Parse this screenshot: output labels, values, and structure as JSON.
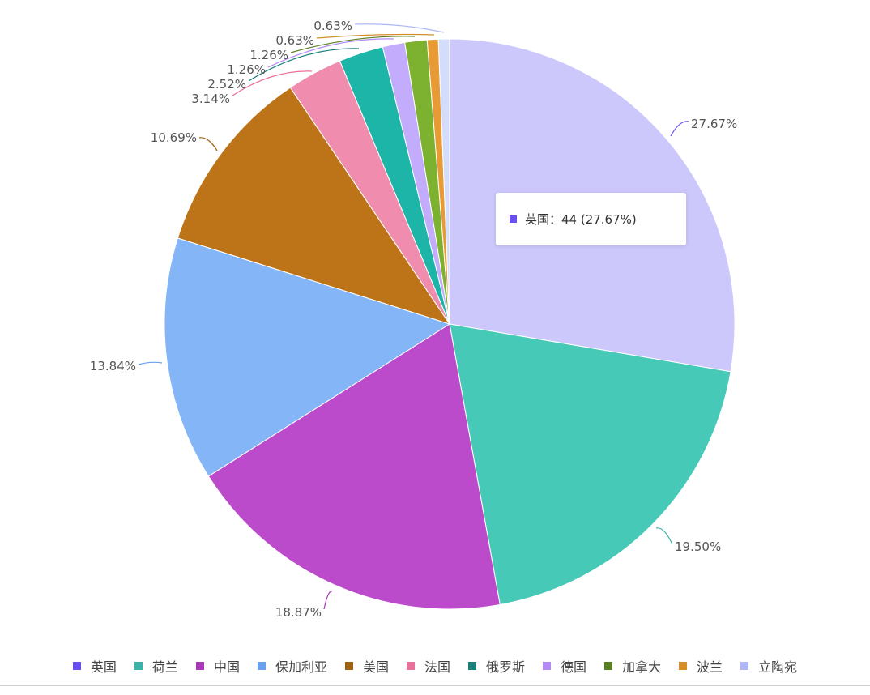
{
  "chart_data": {
    "type": "pie",
    "start": "top",
    "direction": "clockwise",
    "legend_position": "bottom",
    "categories": [
      "英国",
      "荷兰",
      "中国",
      "保加利亚",
      "美国",
      "法国",
      "俄罗斯",
      "德国",
      "加拿大",
      "波兰",
      "立陶宛"
    ],
    "values": [
      44,
      31,
      30,
      22,
      17,
      5,
      4,
      2,
      2,
      1,
      1
    ],
    "labels": [
      "27.67%",
      "19.50%",
      "18.87%",
      "13.84%",
      "10.69%",
      "3.14%",
      "2.52%",
      "1.26%",
      "1.26%",
      "0.63%",
      "0.63%"
    ],
    "slice_colors": [
      "#cdc8fc",
      "#47c9b8",
      "#bc4bcc",
      "#84b6f7",
      "#bd7418",
      "#f08dae",
      "#1cb5a8",
      "#c4acfc",
      "#7cb22f",
      "#e89b35",
      "#d4dcfb"
    ],
    "legend_colors": [
      "#6b4ff0",
      "#3cb3a9",
      "#a93bb8",
      "#6aa0f0",
      "#a0620f",
      "#e8709a",
      "#1a8079",
      "#b18af7",
      "#5a8021",
      "#d48f29",
      "#adb8f5"
    ],
    "line_colors": [
      "#6b4ff0",
      "#3cb3a9",
      "#a93bb8",
      "#6aa0f0",
      "#a0620f",
      "#e8709a",
      "#1a8079",
      "#b18af7",
      "#5a8021",
      "#d48f29",
      "#adb8f5"
    ]
  },
  "tooltip": {
    "text": "英国：44 (27.67%)",
    "color": "#6b4ff0"
  }
}
